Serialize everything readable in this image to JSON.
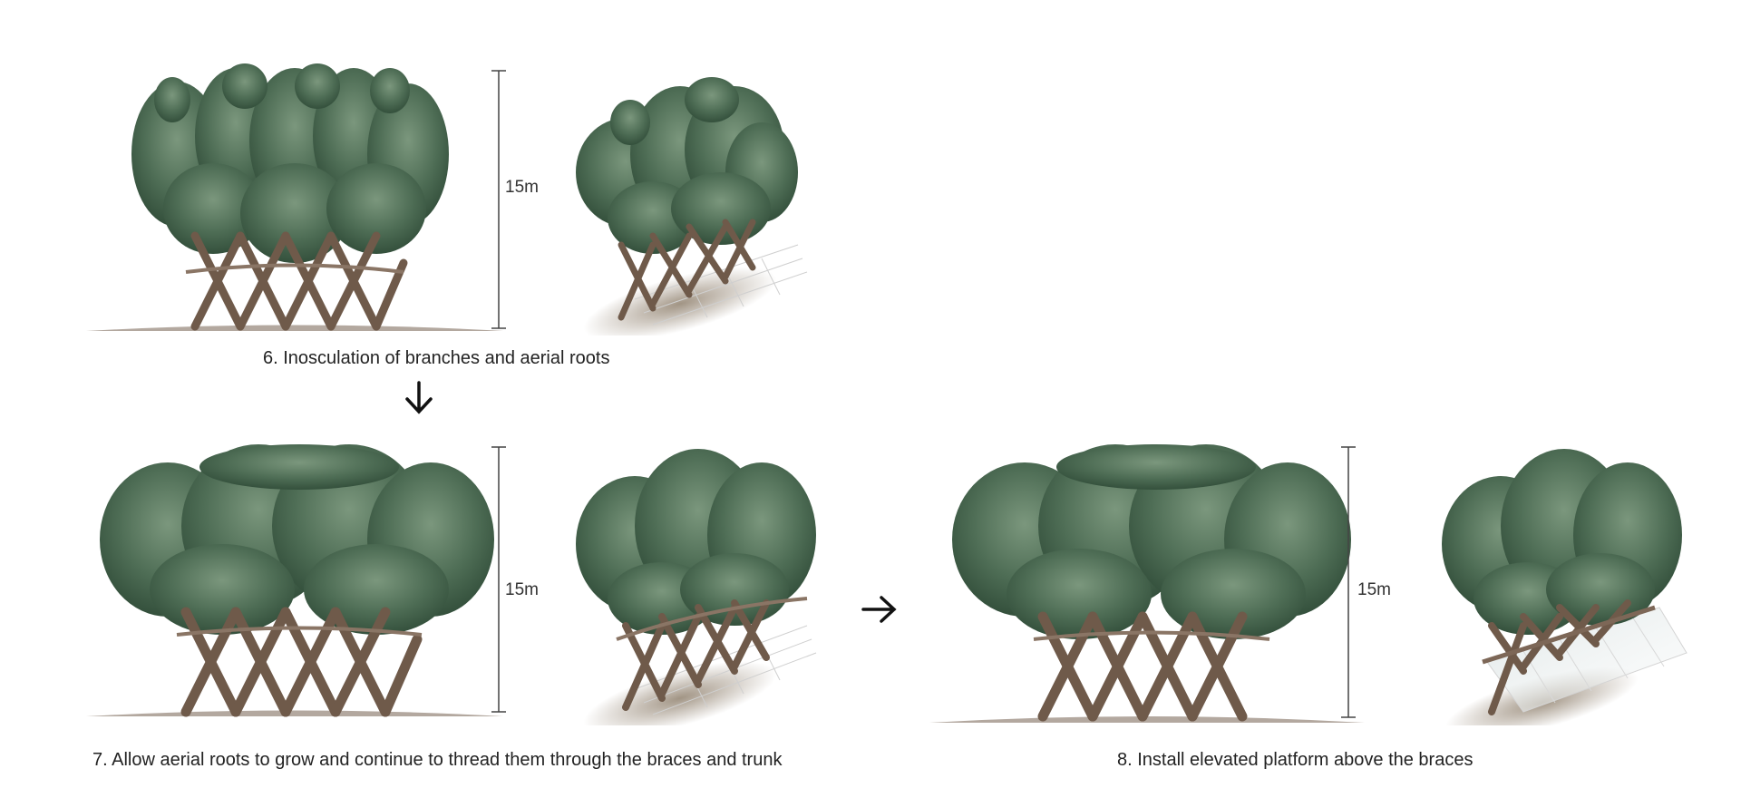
{
  "steps": [
    {
      "caption": "6. Inosculation of branches and aerial roots",
      "height_label": "15m"
    },
    {
      "caption": "7. Allow aerial roots to grow and continue to thread them through the braces and trunk",
      "height_label": "15m"
    },
    {
      "caption": "8. Install elevated platform above the braces",
      "height_label": "15m"
    }
  ],
  "arrows": [
    {
      "direction": "down",
      "glyph": "🡣"
    },
    {
      "direction": "right",
      "glyph": "🡢"
    }
  ],
  "colors": {
    "foliage_dark": "#3f5c45",
    "foliage_mid": "#5f7e64",
    "foliage_light": "#88a38a",
    "trunk": "#6f5a4a",
    "trunk_dark": "#4f3f33",
    "ground": "#9a8f86",
    "platform": "#c9c9c9"
  }
}
